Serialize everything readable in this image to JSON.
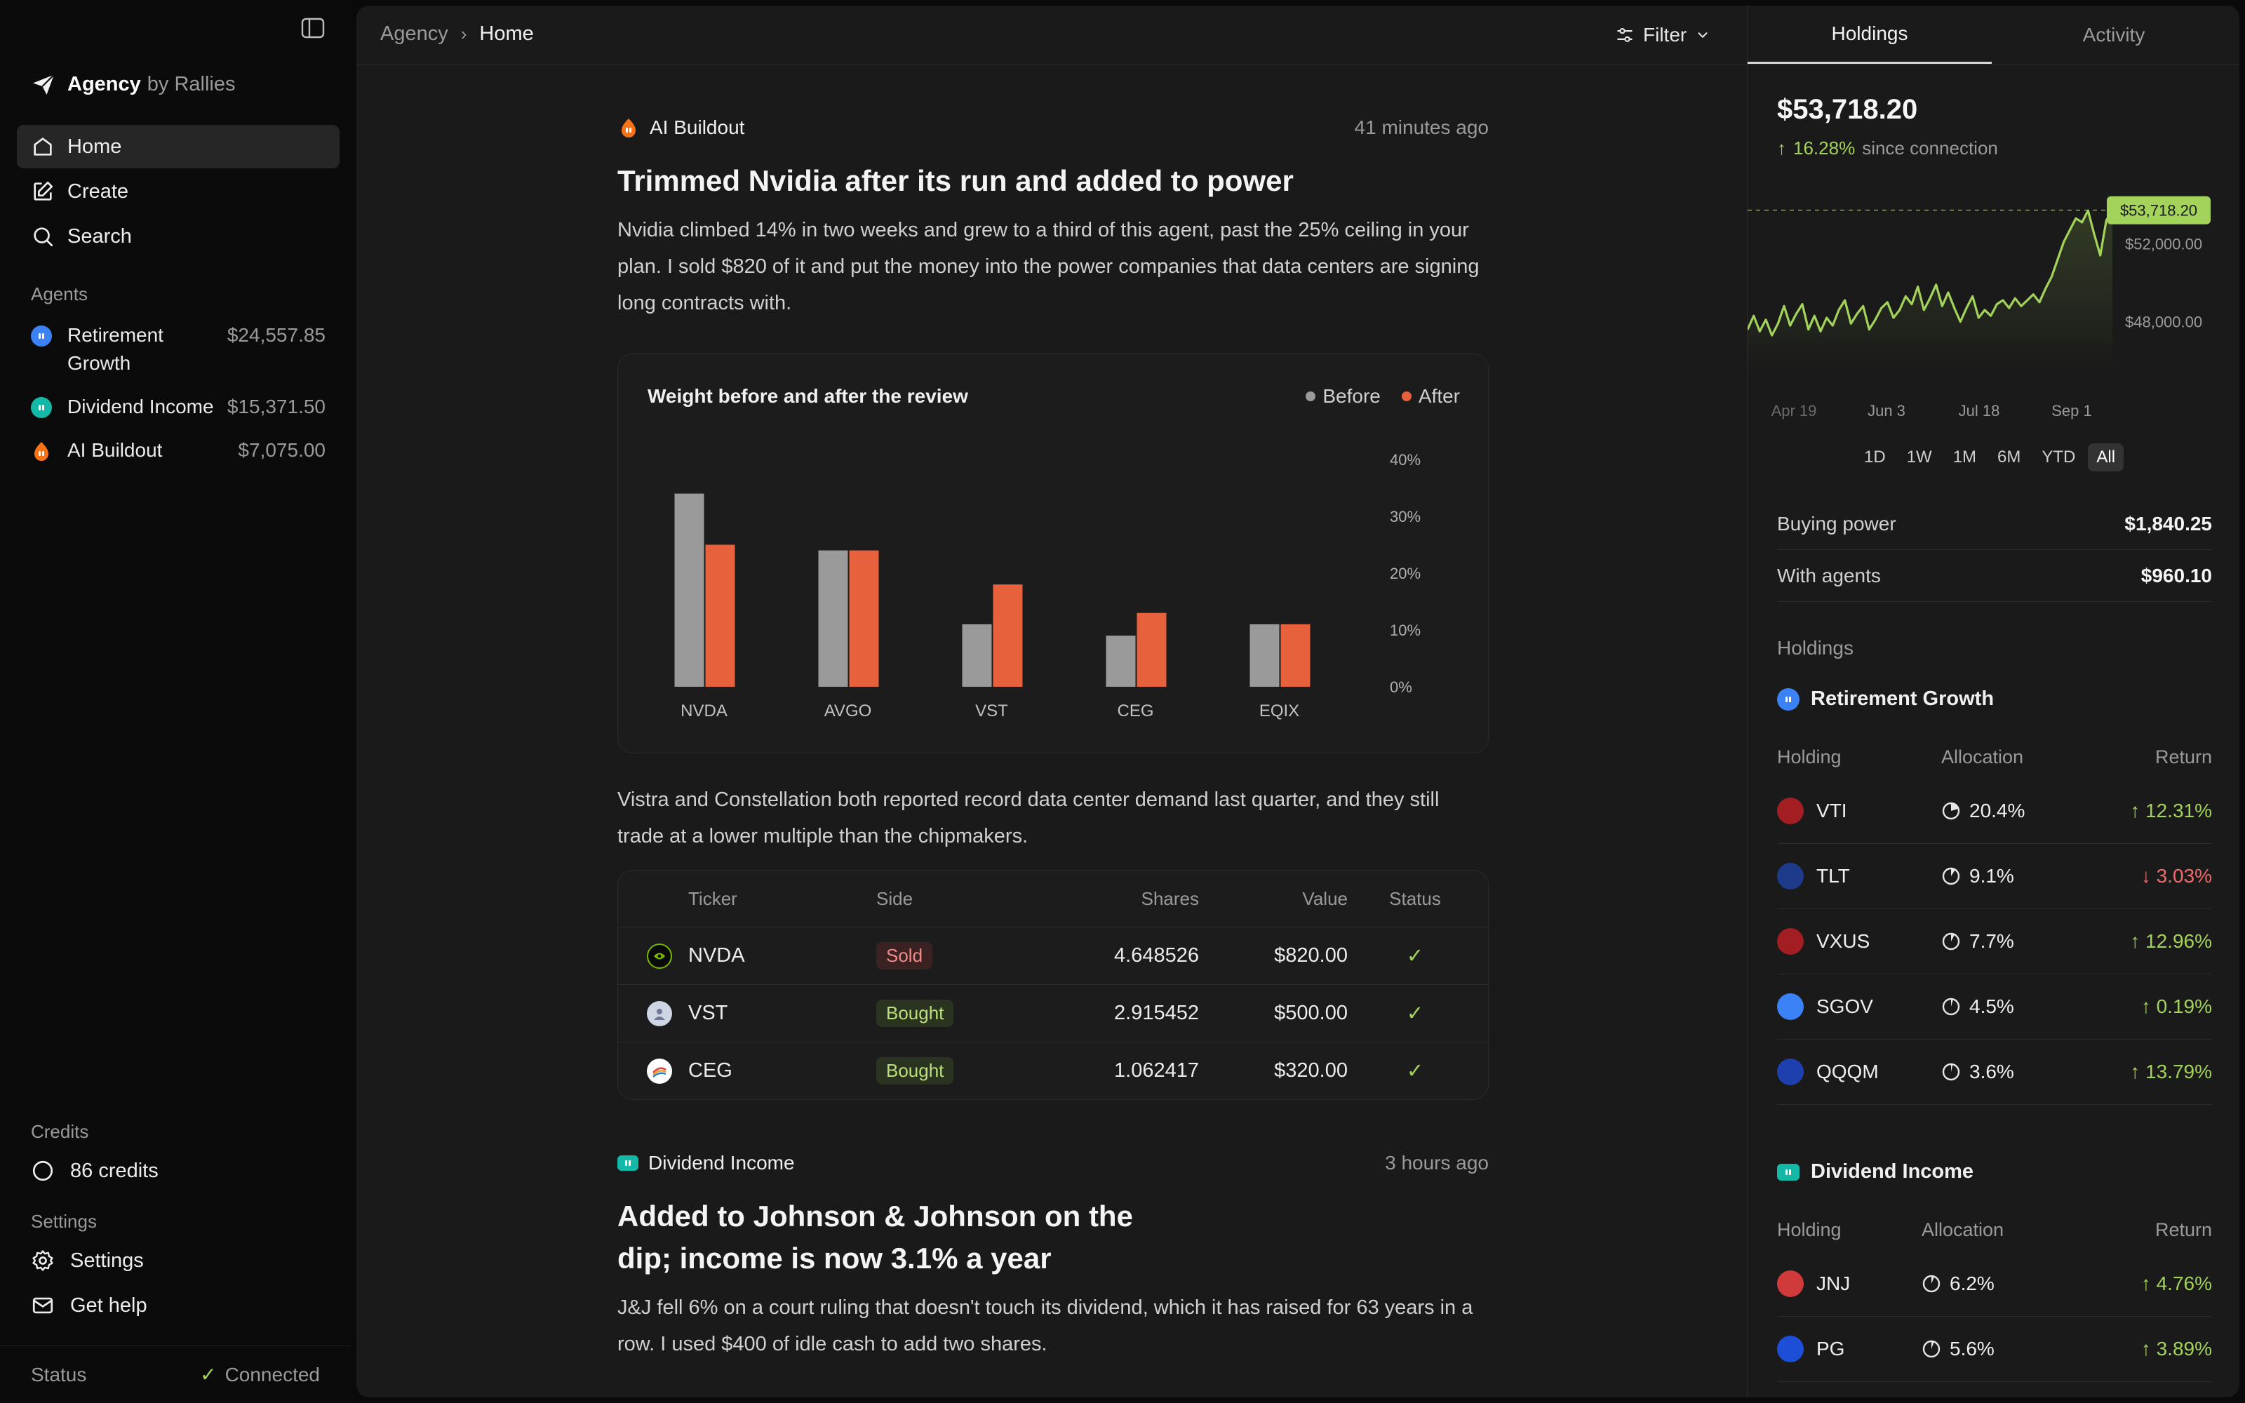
{
  "colors": {
    "accent_green": "#a3d35a",
    "negative_red": "#ef6a6a",
    "after_orange": "#e8613d",
    "before_gray": "#9a9a9a",
    "retirement_blue": "#3b82f6",
    "dividend_teal": "#14b8a6",
    "ai_orange": "#f97316"
  },
  "sidebar": {
    "brand_name": "Agency",
    "brand_suffix": "by Rallies",
    "nav": [
      {
        "label": "Home",
        "icon": "home-icon"
      },
      {
        "label": "Create",
        "icon": "edit-icon"
      },
      {
        "label": "Search",
        "icon": "search-icon"
      }
    ],
    "agents_label": "Agents",
    "agents": [
      {
        "name": "Retirement Growth",
        "value": "$24,557.85",
        "icon": "retirement-agent-icon"
      },
      {
        "name": "Dividend Income",
        "value": "$15,371.50",
        "icon": "dividend-agent-icon"
      },
      {
        "name": "AI Buildout",
        "value": "$7,075.00",
        "icon": "ai-agent-icon"
      }
    ],
    "credits_label": "Credits",
    "credits_value": "86 credits",
    "settings_label": "Settings",
    "settings_link": "Settings",
    "help_link": "Get help",
    "status_label": "Status",
    "status_value": "Connected"
  },
  "topbar": {
    "breadcrumb": [
      "Agency",
      "Home"
    ],
    "filter_label": "Filter"
  },
  "feed": {
    "post1": {
      "agent": "AI Buildout",
      "time": "41 minutes ago",
      "title": "Trimmed Nvidia after its run and added to power",
      "body": "Nvidia climbed 14% in two weeks and grew to a third of this agent, past the 25% ceiling in your plan. I sold $820 of it and put the money into the power companies that data centers are signing long contracts with.",
      "body2": "Vistra and Constellation both reported record data center demand last quarter, and they still trade at a lower multiple than the chipmakers.",
      "table": {
        "headers": [
          "Ticker",
          "Side",
          "Shares",
          "Value",
          "Status"
        ],
        "rows": [
          {
            "ticker": "NVDA",
            "side": "Sold",
            "shares": "4.648526",
            "value": "$820.00",
            "status": "✓"
          },
          {
            "ticker": "VST",
            "side": "Bought",
            "shares": "2.915452",
            "value": "$500.00",
            "status": "✓"
          },
          {
            "ticker": "CEG",
            "side": "Bought",
            "shares": "1.062417",
            "value": "$320.00",
            "status": "✓"
          }
        ]
      }
    },
    "post2": {
      "agent": "Dividend Income",
      "time": "3 hours ago",
      "title": "Added to Johnson & Johnson on the dip; income is now 3.1% a year",
      "body": "J&J fell 6% on a court ruling that doesn't touch its dividend, which it has raised for 63 years in a row. I used $400 of idle cash to add two shares."
    }
  },
  "chart_data": [
    {
      "type": "bar",
      "title": "Weight before and after the review",
      "categories": [
        "NVDA",
        "AVGO",
        "VST",
        "CEG",
        "EQIX"
      ],
      "series": [
        {
          "name": "Before",
          "values": [
            34,
            24,
            11,
            9,
            11
          ]
        },
        {
          "name": "After",
          "values": [
            25,
            24,
            18,
            13,
            11
          ]
        }
      ],
      "ylim": [
        0,
        40
      ],
      "yticks": [
        "40%",
        "30%",
        "20%",
        "10%",
        "0%"
      ],
      "legend": "top-right"
    },
    {
      "type": "line",
      "title": "",
      "x_ticks": [
        "Apr 19",
        "Jun 3",
        "Jul 18",
        "Sep 1"
      ],
      "y_ticks": [
        "$52,000.00",
        "$48,000.00"
      ],
      "current_label": "$53,718.20",
      "ylim": [
        45500,
        54500
      ],
      "series": [
        {
          "values": [
            47600,
            48300,
            47500,
            48100,
            47300,
            47900,
            48800,
            47800,
            48400,
            48900,
            47600,
            48300,
            47500,
            48200,
            47800,
            48600,
            49100,
            47900,
            48400,
            48800,
            47600,
            48100,
            48700,
            49000,
            48200,
            48600,
            49300,
            48900,
            49800,
            48600,
            49200,
            49900,
            48800,
            49500,
            48700,
            48000,
            48700,
            49300,
            48200,
            48600,
            48300,
            48900,
            49100,
            48700,
            49200,
            48800,
            49100,
            49400,
            49000,
            49700,
            50300,
            51200,
            52100,
            52700,
            53300,
            53100,
            53700,
            52500,
            51400,
            53200,
            53718
          ]
        }
      ]
    }
  ],
  "rpanel": {
    "tabs": [
      "Holdings",
      "Activity"
    ],
    "balance": "$53,718.20",
    "gain_pct": "16.28%",
    "gain_since": "since connection",
    "ranges": [
      "1D",
      "1W",
      "1M",
      "6M",
      "YTD",
      "All"
    ],
    "buying_power_label": "Buying power",
    "buying_power_value": "$1,840.25",
    "with_agents_label": "With agents",
    "with_agents_value": "$960.10",
    "holdings_label": "Holdings",
    "group1": {
      "title": "Retirement Growth",
      "headers": [
        "Holding",
        "Allocation",
        "Return"
      ],
      "rows": [
        {
          "ticker": "VTI",
          "alloc": "20.4%",
          "ret": "12.31%",
          "dir": "up",
          "alloc_frac": 0.204,
          "logo_color": "#a21e23"
        },
        {
          "ticker": "TLT",
          "alloc": "9.1%",
          "ret": "3.03%",
          "dir": "down",
          "alloc_frac": 0.091,
          "logo_color": "#1e3a8a"
        },
        {
          "ticker": "VXUS",
          "alloc": "7.7%",
          "ret": "12.96%",
          "dir": "up",
          "alloc_frac": 0.077,
          "logo_color": "#a21e23"
        },
        {
          "ticker": "SGOV",
          "alloc": "4.5%",
          "ret": "0.19%",
          "dir": "up",
          "alloc_frac": 0.045,
          "logo_color": "#3b82f6"
        },
        {
          "ticker": "QQQM",
          "alloc": "3.6%",
          "ret": "13.79%",
          "dir": "up",
          "alloc_frac": 0.036,
          "logo_color": "#1e40af"
        }
      ]
    },
    "group2": {
      "title": "Dividend Income",
      "headers": [
        "Holding",
        "Allocation",
        "Return"
      ],
      "rows": [
        {
          "ticker": "JNJ",
          "alloc": "6.2%",
          "ret": "4.76%",
          "dir": "up",
          "alloc_frac": 0.062,
          "logo_color": "#d13a3a"
        },
        {
          "ticker": "PG",
          "alloc": "5.6%",
          "ret": "3.89%",
          "dir": "up",
          "alloc_frac": 0.056,
          "logo_color": "#1d4ed8"
        }
      ]
    }
  }
}
